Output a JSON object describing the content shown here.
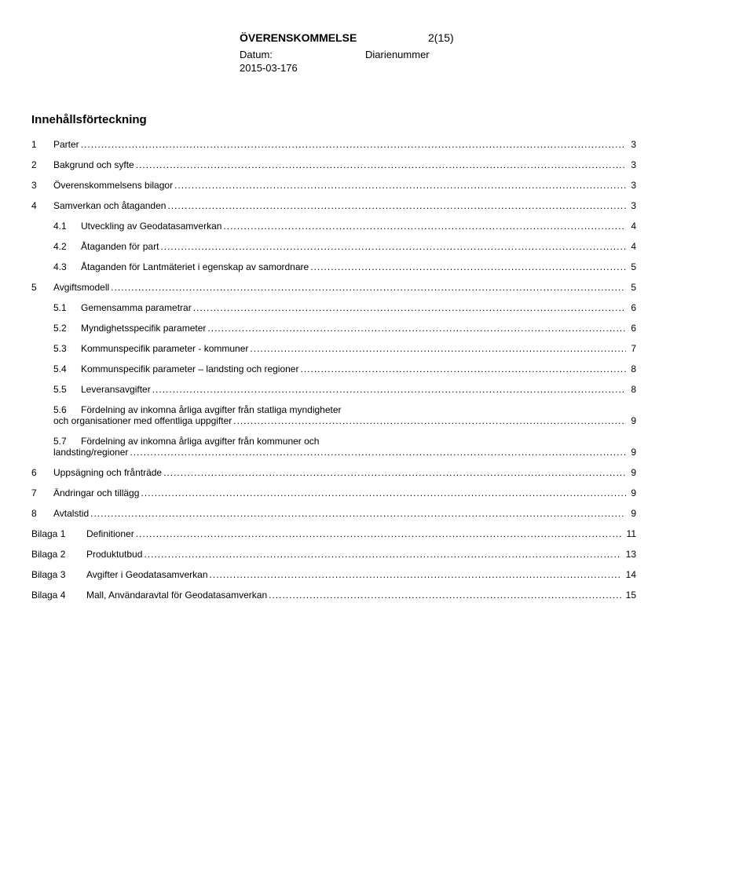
{
  "header": {
    "title": "ÖVERENSKOMMELSE",
    "pagenum": "2(15)",
    "datum_label": "Datum:",
    "diarie_label": "Diarienummer",
    "date": "2015-03-176"
  },
  "toc_title": "Innehållsförteckning",
  "toc": [
    {
      "num": "1",
      "label": "Parter",
      "page": "3",
      "indent": 0
    },
    {
      "num": "2",
      "label": "Bakgrund och syfte",
      "page": "3",
      "indent": 0
    },
    {
      "num": "3",
      "label": "Överenskommelsens bilagor",
      "page": "3",
      "indent": 0
    },
    {
      "num": "4",
      "label": "Samverkan och åtaganden",
      "page": "3",
      "indent": 0
    },
    {
      "num": "4.1",
      "label": "Utveckling av Geodatasamverkan",
      "page": "4",
      "indent": 1
    },
    {
      "num": "4.2",
      "label": "Åtaganden för part",
      "page": "4",
      "indent": 1
    },
    {
      "num": "4.3",
      "label": "Åtaganden för Lantmäteriet i egenskap av samordnare",
      "page": "5",
      "indent": 1
    },
    {
      "num": "5",
      "label": "Avgiftsmodell",
      "page": "5",
      "indent": 0
    },
    {
      "num": "5.1",
      "label": "Gemensamma parametrar",
      "page": "6",
      "indent": 1
    },
    {
      "num": "5.2",
      "label": "Myndighetsspecifik parameter",
      "page": "6",
      "indent": 1
    },
    {
      "num": "5.3",
      "label": "Kommunspecifik parameter - kommuner",
      "page": "7",
      "indent": 1
    },
    {
      "num": "5.4",
      "label": "Kommunspecifik parameter – landsting och regioner",
      "page": "8",
      "indent": 1
    },
    {
      "num": "5.5",
      "label": "Leveransavgifter",
      "page": "8",
      "indent": 1
    },
    {
      "num": "5.6",
      "label": "Fördelning av inkomna årliga avgifter från statliga myndigheter",
      "label2": "och organisationer med offentliga uppgifter",
      "page": "9",
      "indent": 1,
      "multiline": true
    },
    {
      "num": "5.7",
      "label": "Fördelning av inkomna årliga avgifter från kommuner och",
      "label2": "landsting/regioner",
      "page": "9",
      "indent": 1,
      "multiline": true
    },
    {
      "num": "6",
      "label": "Uppsägning och frånträde",
      "page": "9",
      "indent": 0
    },
    {
      "num": "7",
      "label": "Ändringar och tillägg",
      "page": "9",
      "indent": 0
    },
    {
      "num": "8",
      "label": "Avtalstid",
      "page": "9",
      "indent": 0
    },
    {
      "num": "Bilaga 1",
      "label": "Definitioner",
      "page": "11",
      "indent": 0,
      "bilaga": true
    },
    {
      "num": "Bilaga 2",
      "label": "Produktutbud",
      "page": "13",
      "indent": 0,
      "bilaga": true
    },
    {
      "num": "Bilaga 3",
      "label": "Avgifter i Geodatasamverkan",
      "page": "14",
      "indent": 0,
      "bilaga": true
    },
    {
      "num": "Bilaga 4",
      "label": "Mall, Användaravtal för Geodatasamverkan",
      "page": "15",
      "indent": 0,
      "bilaga": true
    }
  ]
}
